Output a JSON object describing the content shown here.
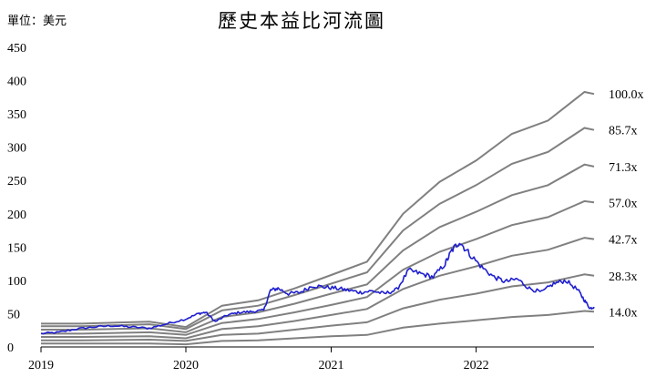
{
  "chart_data": {
    "type": "line",
    "title": "歷史本益比河流圖",
    "unit_label": "單位：美元",
    "xlabel": "",
    "ylabel": "",
    "ylim": [
      0,
      450
    ],
    "xlim": [
      "2019-01-01",
      "2022-10-25"
    ],
    "yticks": [
      "0",
      "50",
      "100",
      "150",
      "200",
      "250",
      "300",
      "350",
      "400",
      "450"
    ],
    "xticks": [
      {
        "label": "2019",
        "date": "2019-01-01"
      },
      {
        "label": "2020",
        "date": "2020-01-01"
      },
      {
        "label": "2021",
        "date": "2021-01-01"
      },
      {
        "label": "2022",
        "date": "2022-01-01"
      }
    ],
    "grid": false,
    "legend": "none",
    "colors": {
      "band": "#808080",
      "price": "#1f1fcf"
    },
    "band_dates": [
      "2019-01-01",
      "2019-04-15",
      "2019-10-01",
      "2020-01-01",
      "2020-04-01",
      "2020-07-01",
      "2020-10-01",
      "2021-01-01",
      "2021-04-01",
      "2021-07-01",
      "2021-10-01",
      "2022-01-01",
      "2022-04-01",
      "2022-07-01",
      "2022-10-01",
      "2022-10-25"
    ],
    "bands": [
      {
        "name": "100.0x",
        "values": [
          35,
          35,
          38,
          30,
          62,
          70,
          88,
          108,
          128,
          200,
          248,
          280,
          320,
          340,
          383,
          380
        ]
      },
      {
        "name": "85.7x",
        "values": [
          31,
          31,
          34,
          27,
          55,
          62,
          78,
          95,
          112,
          175,
          215,
          243,
          275,
          293,
          329,
          326
        ]
      },
      {
        "name": "71.3x",
        "values": [
          26,
          26,
          28,
          22,
          45,
          52,
          65,
          80,
          94,
          145,
          180,
          203,
          228,
          243,
          274,
          271
        ]
      },
      {
        "name": "57.0x",
        "values": [
          20,
          20,
          22,
          18,
          36,
          42,
          52,
          63,
          75,
          116,
          143,
          162,
          183,
          195,
          219,
          217
        ]
      },
      {
        "name": "42.7x",
        "values": [
          15,
          15,
          16,
          13,
          27,
          31,
          39,
          48,
          57,
          87,
          107,
          121,
          137,
          146,
          164,
          162
        ]
      },
      {
        "name": "28.3x",
        "values": [
          10,
          10,
          11,
          9,
          18,
          20,
          26,
          32,
          37,
          58,
          71,
          80,
          91,
          97,
          109,
          107
        ]
      },
      {
        "name": "14.0x",
        "values": [
          5,
          5,
          5,
          4,
          9,
          10,
          13,
          16,
          18,
          29,
          35,
          40,
          45,
          48,
          54,
          53
        ]
      }
    ],
    "price": {
      "name": "",
      "x": [
        "2019-01-01",
        "2019-02-15",
        "2019-04-01",
        "2019-05-15",
        "2019-07-01",
        "2019-08-15",
        "2019-10-01",
        "2019-11-15",
        "2020-01-01",
        "2020-02-01",
        "2020-02-20",
        "2020-03-15",
        "2020-04-15",
        "2020-05-15",
        "2020-06-15",
        "2020-07-15",
        "2020-08-01",
        "2020-08-20",
        "2020-09-15",
        "2020-10-15",
        "2020-11-15",
        "2020-12-15",
        "2021-01-15",
        "2021-02-15",
        "2021-03-15",
        "2021-04-15",
        "2021-05-15",
        "2021-06-15",
        "2021-07-15",
        "2021-08-15",
        "2021-09-15",
        "2021-10-15",
        "2021-11-01",
        "2021-11-20",
        "2021-12-15",
        "2022-01-15",
        "2022-02-15",
        "2022-03-15",
        "2022-04-15",
        "2022-05-15",
        "2022-06-15",
        "2022-07-15",
        "2022-08-15",
        "2022-09-15",
        "2022-10-01",
        "2022-10-15",
        "2022-10-25"
      ],
      "y": [
        20,
        22,
        27,
        30,
        32,
        30,
        28,
        35,
        42,
        50,
        52,
        38,
        48,
        52,
        53,
        55,
        85,
        88,
        80,
        82,
        92,
        90,
        88,
        85,
        82,
        84,
        80,
        86,
        115,
        110,
        105,
        125,
        145,
        158,
        140,
        120,
        105,
        98,
        102,
        88,
        82,
        95,
        100,
        85,
        70,
        58,
        60
      ]
    }
  }
}
